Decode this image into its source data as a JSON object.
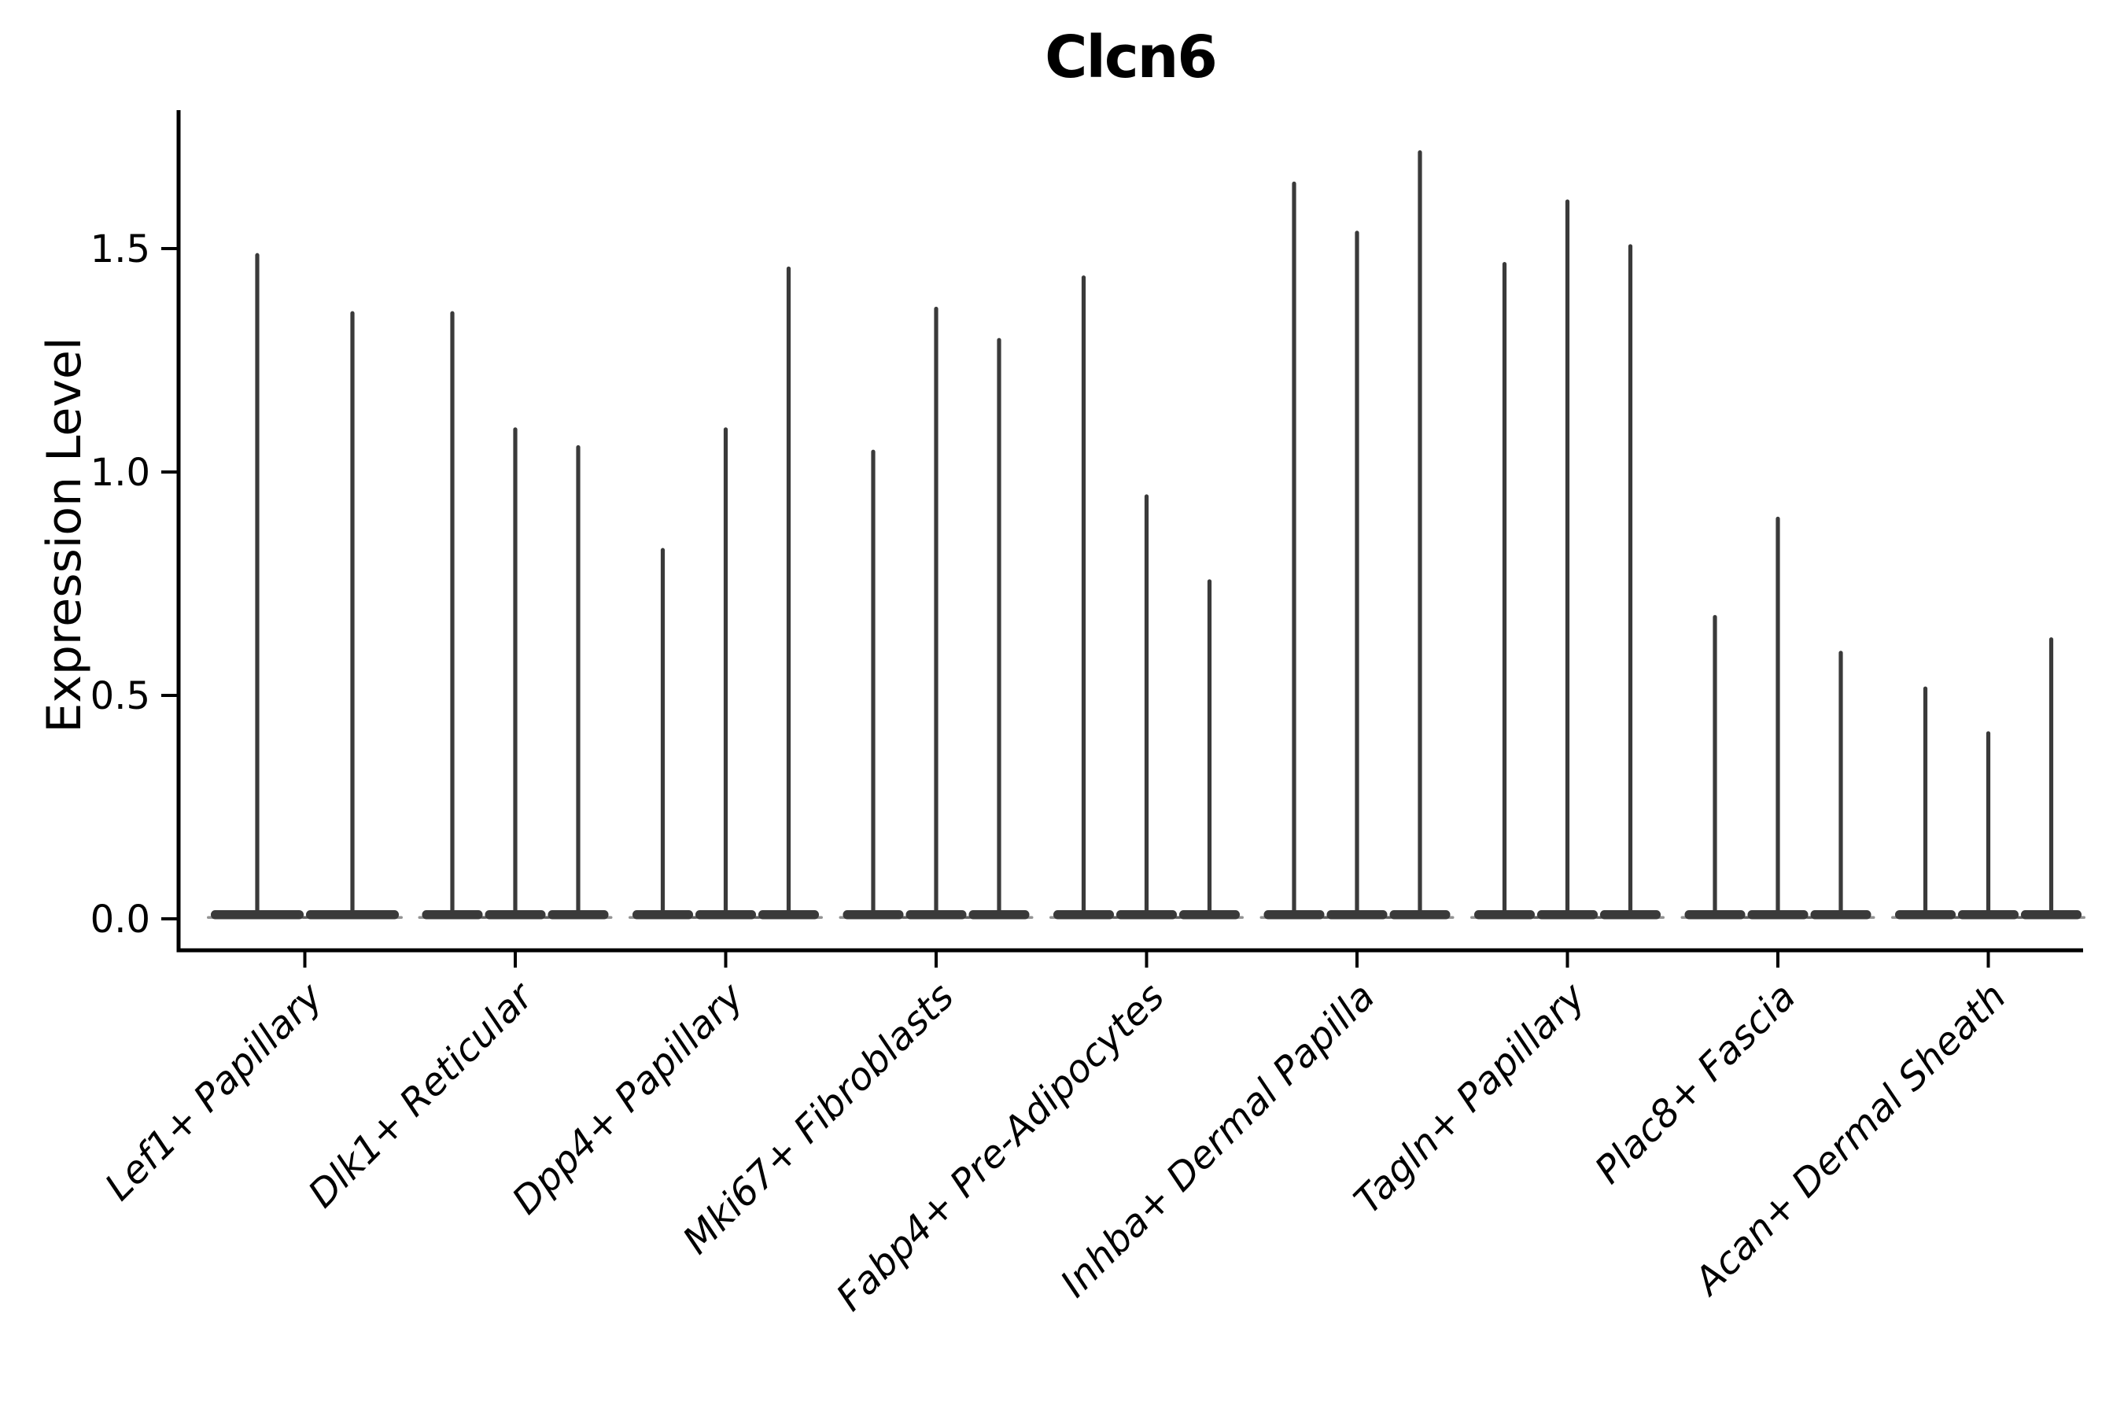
{
  "chart_data": {
    "type": "violin",
    "title": "Clcn6",
    "xlabel": "",
    "ylabel": "Expression Level",
    "yticks": [
      0.0,
      0.5,
      1.0,
      1.5
    ],
    "y_tick_labels": [
      "0.0",
      "0.5",
      "1.0",
      "1.5"
    ],
    "ylim": [
      -0.07,
      1.82
    ],
    "grid": false,
    "legend": "none",
    "categories": [
      "Lef1+ Papillary",
      "Dlk1+ Reticular",
      "Dpp4+ Papillary",
      "Mki67+ Fibroblasts",
      "Fabp4+ Pre-Adipocytes",
      "Inhba+ Dermal Papilla",
      "Tagln+ Papillary",
      "Plac8+ Fascia",
      "Acan+ Dermal Sheath"
    ],
    "groups": [
      {
        "label": "Lef1+ Papillary",
        "violin_max_values": [
          1.49,
          1.36
        ]
      },
      {
        "label": "Dlk1+ Reticular",
        "violin_max_values": [
          1.36,
          1.1,
          1.06
        ]
      },
      {
        "label": "Dpp4+ Papillary",
        "violin_max_values": [
          0.83,
          1.1,
          1.46
        ]
      },
      {
        "label": "Mki67+ Fibroblasts",
        "violin_max_values": [
          1.05,
          1.37,
          1.3
        ]
      },
      {
        "label": "Fabp4+ Pre-Adipocytes",
        "violin_max_values": [
          1.44,
          0.95,
          0.76
        ]
      },
      {
        "label": "Inhba+ Dermal Papilla",
        "violin_max_values": [
          1.65,
          1.54,
          1.72
        ]
      },
      {
        "label": "Tagln+ Papillary",
        "violin_max_values": [
          1.47,
          1.61,
          1.51
        ]
      },
      {
        "label": "Plac8+ Fascia",
        "violin_max_values": [
          0.68,
          0.9,
          0.6
        ]
      },
      {
        "label": "Acan+ Dermal Sheath",
        "violin_max_values": [
          0.52,
          0.42,
          0.63
        ]
      }
    ],
    "violin_shape": "flat wide base at expression 0 with a thin vertical spike up to the max value",
    "colors": {
      "violin": "#3a3a3a",
      "axis": "#000000",
      "text": "#000000",
      "background": "#ffffff"
    }
  }
}
